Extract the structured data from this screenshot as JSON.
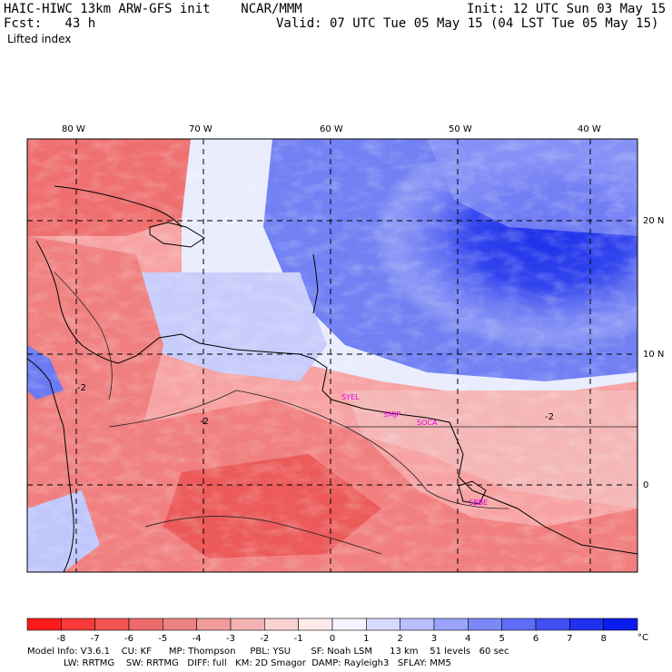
{
  "header": {
    "model_line": "HAIC-HIWC 13km ARW-GFS init    NCAR/MMM",
    "init_line": "Init: 12 UTC Sun 03 May 15",
    "fcst_line": "Fcst:   43 h",
    "valid_line": "Valid: 07 UTC Tue 05 May 15 (04 LST Tue 05 May 15)",
    "field_name": "Lifted index"
  },
  "map": {
    "lon_labels": [
      "80 W",
      "70 W",
      "60 W",
      "50 W",
      "40 W"
    ],
    "lat_labels": [
      "20 N",
      "10 N",
      "0"
    ],
    "stations": [
      "SYEL",
      "SMJP",
      "SOCA",
      "SBBE"
    ],
    "contour_labels": [
      "-2",
      "-2",
      "-2"
    ]
  },
  "colorbar": {
    "ticks": [
      "-8",
      "-7",
      "-6",
      "-5",
      "-4",
      "-3",
      "-2",
      "-1",
      "0",
      "1",
      "2",
      "3",
      "4",
      "5",
      "6",
      "7",
      "8"
    ],
    "unit": "°C",
    "colors": [
      "#ff1a1a",
      "#f73a3a",
      "#f25353",
      "#ee6b6b",
      "#ec8383",
      "#f09c9c",
      "#f5b4b4",
      "#fad2d2",
      "#ffeaea",
      "#f4f4ff",
      "#d6dafe",
      "#b8bffd",
      "#9ba4fb",
      "#7d88f8",
      "#5f6cf5",
      "#3f4ff2",
      "#1f31ef",
      "#0a1cee"
    ]
  },
  "footer": {
    "line1": "Model Info: V3.6.1    CU: KF      MP: Thompson     PBL: YSU       SF: Noah LSM      13 km    51 levels   60 sec",
    "line2": "LW: RRTMG    SW: RRTMG   DIFF: full   KM: 2D Smagor  DAMP: Rayleigh3   SFLAY: MM5"
  }
}
